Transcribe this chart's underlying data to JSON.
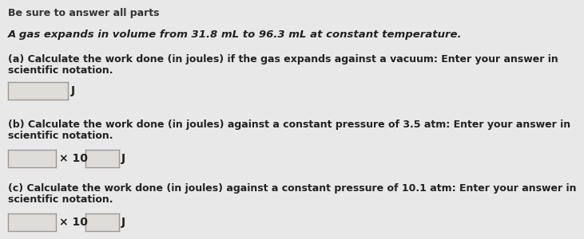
{
  "bg_color": "#e8e8e8",
  "title_line": "Be sure to answer all parts",
  "problem_statement": "A gas expands in volume from 31.8 mL to 96.3 mL at constant temperature.",
  "part_a_label1": "(a) Calculate the work done (in joules) if the gas expands against a vacuum: Enter your answer in",
  "part_a_label2": "scientific notation.",
  "part_a_unit": "J",
  "part_b_label1": "(b) Calculate the work done (in joules) against a constant pressure of 3.5 atm: Enter your answer in",
  "part_b_label2": "scientific notation.",
  "part_b_x10": "× 10",
  "part_b_unit": "J",
  "part_c_label1": "(c) Calculate the work done (in joules) against a constant pressure of 10.1 atm: Enter your answer in",
  "part_c_label2": "scientific notation.",
  "part_c_x10": "× 10",
  "part_c_unit": "J",
  "box_facecolor": "#e0ddd8",
  "box_edgecolor": "#999999",
  "text_color_normal": "#333333",
  "text_color_bold": "#222222",
  "font_size_title": 9,
  "font_size_body": 9,
  "font_size_ps": 9.5
}
